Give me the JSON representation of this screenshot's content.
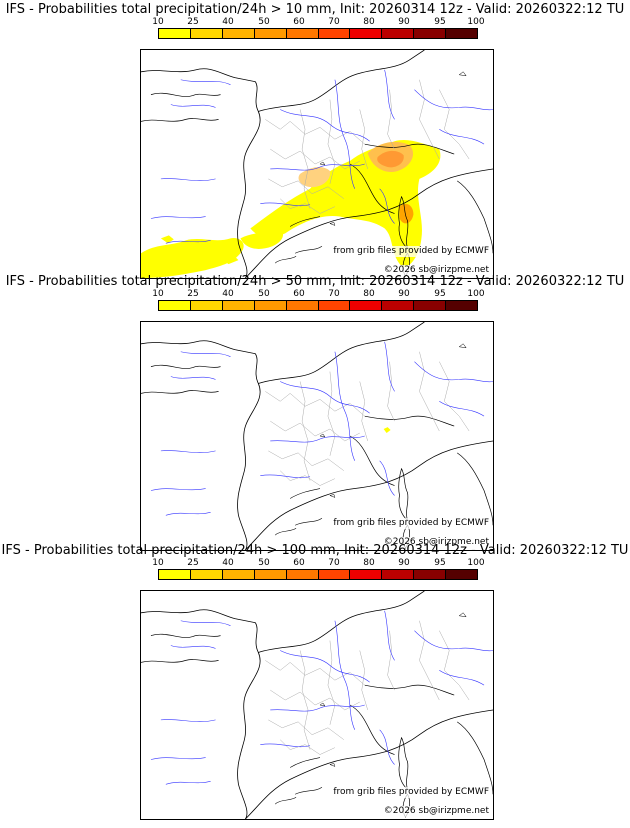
{
  "colorbar": {
    "labels": [
      "10",
      "25",
      "40",
      "50",
      "60",
      "70",
      "80",
      "90",
      "95",
      "100"
    ],
    "colors": [
      "#ffff00",
      "#ffd700",
      "#ffb300",
      "#ff9900",
      "#ff7700",
      "#ff4400",
      "#ee0000",
      "#bb0000",
      "#880000",
      "#550000"
    ]
  },
  "credits": {
    "source": "from grib files provided by ECMWF",
    "copyright": "©2026 sb@irizpme.net"
  },
  "panels": [
    {
      "title": "IFS - Probabilities total precipitation/24h > 10 mm, Init: 20260314 12z - Valid: 20260322:12 TU"
    },
    {
      "title": "IFS - Probabilities total precipitation/24h > 50 mm, Init: 20260314 12z - Valid: 20260322:12 TU"
    },
    {
      "title": "IFS - Probabilities total precipitation/24h > 100 mm, Init: 20260314 12z - Valid: 20260322:12 TU"
    }
  ]
}
